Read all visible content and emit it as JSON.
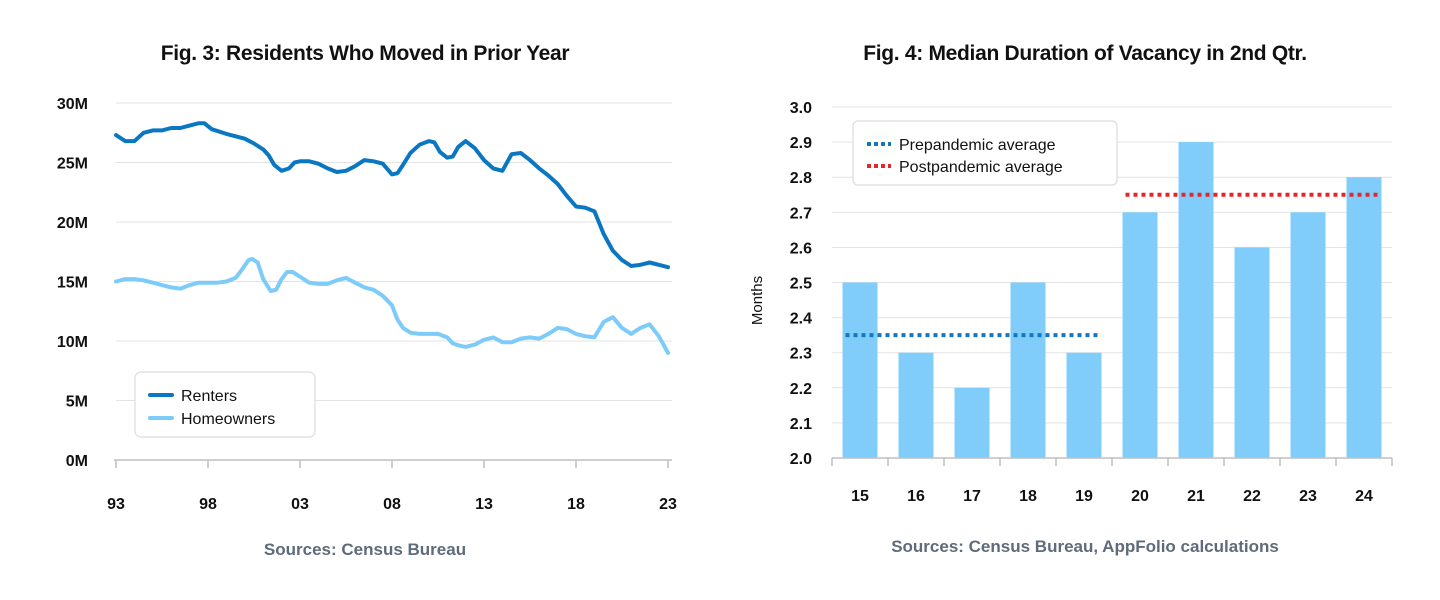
{
  "chart_data": [
    {
      "type": "line",
      "title": "Fig. 3: Residents Who Moved in Prior Year",
      "source": "Sources: Census Bureau",
      "xlabel": "",
      "ylabel": "",
      "xlim": [
        1993,
        2023
      ],
      "ylim": [
        0,
        30
      ],
      "y_tick_values": [
        0,
        5,
        10,
        15,
        20,
        25,
        30
      ],
      "y_tick_labels": [
        "0M",
        "5M",
        "10M",
        "15M",
        "20M",
        "25M",
        "30M"
      ],
      "x_tick_values": [
        1993,
        1998,
        2003,
        2008,
        2013,
        2018,
        2023
      ],
      "x_tick_labels": [
        "93",
        "98",
        "03",
        "08",
        "13",
        "18",
        "23"
      ],
      "grid": "horizontal",
      "legend_position": "bottom-left",
      "series": [
        {
          "name": "Renters",
          "color": "#0a77c2",
          "points": [
            [
              1993,
              27.3
            ],
            [
              1993.5,
              26.8
            ],
            [
              1994,
              26.8
            ],
            [
              1994.5,
              27.5
            ],
            [
              1995,
              27.7
            ],
            [
              1995.5,
              27.7
            ],
            [
              1996,
              27.9
            ],
            [
              1996.5,
              27.9
            ],
            [
              1997,
              28.1
            ],
            [
              1997.5,
              28.3
            ],
            [
              1997.8,
              28.3
            ],
            [
              1998.2,
              27.8
            ],
            [
              1999,
              27.4
            ],
            [
              1999.5,
              27.2
            ],
            [
              2000,
              27.0
            ],
            [
              2000.5,
              26.6
            ],
            [
              2001,
              26.1
            ],
            [
              2001.3,
              25.6
            ],
            [
              2001.6,
              24.8
            ],
            [
              2002,
              24.3
            ],
            [
              2002.4,
              24.5
            ],
            [
              2002.7,
              25.0
            ],
            [
              2003,
              25.1
            ],
            [
              2003.5,
              25.1
            ],
            [
              2004,
              24.9
            ],
            [
              2004.5,
              24.5
            ],
            [
              2005,
              24.2
            ],
            [
              2005.5,
              24.3
            ],
            [
              2006,
              24.7
            ],
            [
              2006.5,
              25.2
            ],
            [
              2007,
              25.1
            ],
            [
              2007.5,
              24.9
            ],
            [
              2008,
              24.0
            ],
            [
              2008.3,
              24.1
            ],
            [
              2008.6,
              24.8
            ],
            [
              2009,
              25.8
            ],
            [
              2009.5,
              26.5
            ],
            [
              2010,
              26.8
            ],
            [
              2010.3,
              26.7
            ],
            [
              2010.6,
              25.9
            ],
            [
              2011,
              25.4
            ],
            [
              2011.3,
              25.5
            ],
            [
              2011.6,
              26.3
            ],
            [
              2012,
              26.8
            ],
            [
              2012.5,
              26.2
            ],
            [
              2013,
              25.2
            ],
            [
              2013.5,
              24.5
            ],
            [
              2014,
              24.3
            ],
            [
              2014.5,
              25.7
            ],
            [
              2015,
              25.8
            ],
            [
              2015.5,
              25.2
            ],
            [
              2016,
              24.5
            ],
            [
              2016.5,
              23.9
            ],
            [
              2017,
              23.2
            ],
            [
              2017.5,
              22.2
            ],
            [
              2018,
              21.3
            ],
            [
              2018.5,
              21.2
            ],
            [
              2019,
              20.9
            ],
            [
              2019.5,
              19.0
            ],
            [
              2020,
              17.6
            ],
            [
              2020.5,
              16.8
            ],
            [
              2021,
              16.3
            ],
            [
              2021.5,
              16.4
            ],
            [
              2022,
              16.6
            ],
            [
              2022.5,
              16.4
            ],
            [
              2023,
              16.2
            ]
          ]
        },
        {
          "name": "Homeowners",
          "color": "#7dcbf8",
          "points": [
            [
              1993,
              15.0
            ],
            [
              1993.5,
              15.2
            ],
            [
              1994,
              15.2
            ],
            [
              1994.5,
              15.1
            ],
            [
              1995,
              14.9
            ],
            [
              1995.5,
              14.7
            ],
            [
              1996,
              14.5
            ],
            [
              1996.5,
              14.4
            ],
            [
              1997,
              14.7
            ],
            [
              1997.5,
              14.9
            ],
            [
              1998,
              14.9
            ],
            [
              1998.5,
              14.9
            ],
            [
              1999,
              15.0
            ],
            [
              1999.5,
              15.3
            ],
            [
              1999.8,
              15.9
            ],
            [
              2000.2,
              16.8
            ],
            [
              2000.4,
              16.9
            ],
            [
              2000.7,
              16.6
            ],
            [
              2001,
              15.2
            ],
            [
              2001.4,
              14.2
            ],
            [
              2001.7,
              14.3
            ],
            [
              2002,
              15.2
            ],
            [
              2002.3,
              15.8
            ],
            [
              2002.6,
              15.8
            ],
            [
              2003,
              15.4
            ],
            [
              2003.5,
              14.9
            ],
            [
              2004,
              14.8
            ],
            [
              2004.5,
              14.8
            ],
            [
              2005,
              15.1
            ],
            [
              2005.5,
              15.3
            ],
            [
              2006,
              14.9
            ],
            [
              2006.5,
              14.5
            ],
            [
              2007,
              14.3
            ],
            [
              2007.5,
              13.8
            ],
            [
              2008,
              13.0
            ],
            [
              2008.3,
              11.8
            ],
            [
              2008.6,
              11.1
            ],
            [
              2009,
              10.7
            ],
            [
              2009.5,
              10.6
            ],
            [
              2010,
              10.6
            ],
            [
              2010.5,
              10.6
            ],
            [
              2011,
              10.3
            ],
            [
              2011.3,
              9.8
            ],
            [
              2011.7,
              9.6
            ],
            [
              2012,
              9.5
            ],
            [
              2012.5,
              9.7
            ],
            [
              2013,
              10.1
            ],
            [
              2013.5,
              10.3
            ],
            [
              2014,
              9.9
            ],
            [
              2014.5,
              9.9
            ],
            [
              2015,
              10.2
            ],
            [
              2015.5,
              10.3
            ],
            [
              2016,
              10.2
            ],
            [
              2016.5,
              10.6
            ],
            [
              2017,
              11.1
            ],
            [
              2017.5,
              11.0
            ],
            [
              2018,
              10.6
            ],
            [
              2018.5,
              10.4
            ],
            [
              2019,
              10.3
            ],
            [
              2019.5,
              11.6
            ],
            [
              2020,
              12.0
            ],
            [
              2020.5,
              11.1
            ],
            [
              2021,
              10.6
            ],
            [
              2021.5,
              11.1
            ],
            [
              2022,
              11.4
            ],
            [
              2022.5,
              10.4
            ],
            [
              2023,
              9.0
            ]
          ]
        }
      ]
    },
    {
      "type": "bar",
      "title": "Fig. 4: Median Duration of Vacancy in 2nd Qtr.",
      "source": "Sources: Census Bureau, AppFolio calculations",
      "xlabel": "",
      "ylabel": "Months",
      "ylim": [
        2.0,
        3.0
      ],
      "y_tick_values": [
        2.0,
        2.1,
        2.2,
        2.3,
        2.4,
        2.5,
        2.6,
        2.7,
        2.8,
        2.9,
        3.0
      ],
      "y_tick_labels": [
        "2.0",
        "2.1",
        "2.2",
        "2.3",
        "2.4",
        "2.5",
        "2.6",
        "2.7",
        "2.8",
        "2.9",
        "3.0"
      ],
      "categories": [
        "15",
        "16",
        "17",
        "18",
        "19",
        "20",
        "21",
        "22",
        "23",
        "24"
      ],
      "values": [
        2.5,
        2.3,
        2.2,
        2.5,
        2.3,
        2.7,
        2.9,
        2.6,
        2.7,
        2.8
      ],
      "bar_color": "#80cdfb",
      "grid": "horizontal",
      "legend_position": "top-left",
      "reference_lines": [
        {
          "name": "Prepandemic average",
          "value": 2.35,
          "from_category": "15",
          "to_category": "19",
          "color": "#1577c0",
          "style": "dotted"
        },
        {
          "name": "Postpandemic average",
          "value": 2.75,
          "from_category": "20",
          "to_category": "24",
          "color": "#e3262c",
          "style": "dotted"
        }
      ]
    }
  ]
}
